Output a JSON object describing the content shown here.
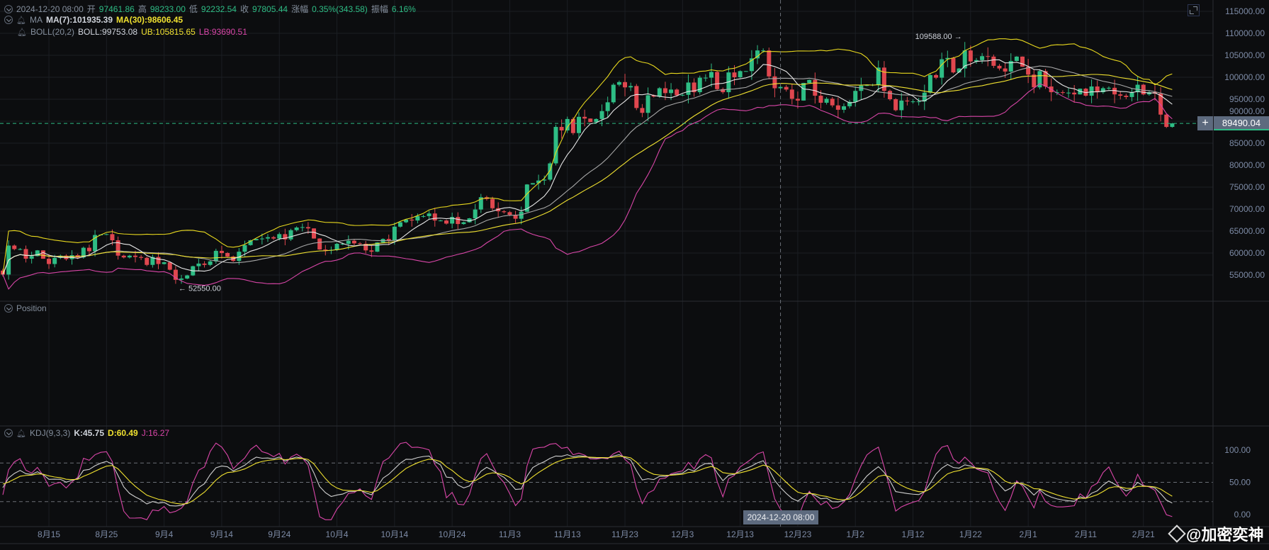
{
  "header": {
    "date": "2024-12-20 08:00",
    "open_label": "开",
    "open": "97461.86",
    "high_label": "高",
    "high": "98233.00",
    "low_label": "低",
    "low": "92232.54",
    "close_label": "收",
    "close": "97805.44",
    "change_label": "涨幅",
    "change": "0.35%(343.58)",
    "amp_label": "振幅",
    "amp": "6.16%"
  },
  "ma": {
    "name": "MA",
    "ma7": "MA(7):101935.39",
    "ma30": "MA(30):98606.45"
  },
  "boll": {
    "name": "BOLL(20,2)",
    "mid": "BOLL:99753.08",
    "ub": "UB:105815.65",
    "lb": "LB:93690.51"
  },
  "position": {
    "name": "Position"
  },
  "kdj": {
    "name": "KDJ(9,3,3)",
    "k": "K:45.75",
    "d": "D:60.49",
    "j": "J:16.27"
  },
  "current_price": "89490.04",
  "crosshair_time": "2024-12-20 08:00",
  "annotations": {
    "max": "109588.00 →",
    "min": "← 52550.00"
  },
  "watermark": "@加密奕神",
  "colors": {
    "up": "#2ebd85",
    "down": "#e0474f",
    "ma7": "#e6e6e6",
    "ma30": "#f0e130",
    "boll_mid": "#a8a8a8",
    "ub": "#e8d81e",
    "lb": "#d946a8",
    "k": "#d0d0d0",
    "d": "#f0e130",
    "j": "#d946a8"
  },
  "chart_data": {
    "type": "candlestick",
    "price_axis": {
      "ticks": [
        "115000.00",
        "110000.00",
        "105000.00",
        "100000.00",
        "95000.00",
        "90000.00",
        "85000.00",
        "80000.00",
        "75000.00",
        "70000.00",
        "65000.00",
        "60000.00",
        "55000.00"
      ],
      "range": [
        55000,
        115000
      ]
    },
    "kdj_axis": {
      "ticks": [
        "100.00",
        "50.00",
        "0.00"
      ],
      "range": [
        0,
        100
      ],
      "dashed_levels": [
        80,
        50,
        20
      ]
    },
    "time_axis": {
      "ticks": [
        "8月15",
        "8月25",
        "9月4",
        "9月14",
        "9月24",
        "10月4",
        "10月14",
        "10月24",
        "11月3",
        "11月13",
        "11月23",
        "12月3",
        "12月13",
        "12月23",
        "1月2",
        "1月12",
        "1月22",
        "2月1",
        "2月11",
        "2月21"
      ]
    },
    "first_open": 56000,
    "closes": [
      55100,
      61700,
      60900,
      60900,
      58700,
      59300,
      60600,
      58700,
      57500,
      58900,
      59400,
      58600,
      59500,
      59000,
      61200,
      60400,
      64100,
      64200,
      64300,
      62900,
      59400,
      59000,
      59400,
      59100,
      58900,
      57300,
      59100,
      57500,
      57900,
      56200,
      53900,
      54200,
      54900,
      57000,
      57600,
      57300,
      58100,
      60500,
      60000,
      59200,
      58200,
      60300,
      61800,
      62900,
      63200,
      63300,
      63600,
      63300,
      64300,
      63100,
      65200,
      65800,
      65900,
      65600,
      63300,
      60800,
      60600,
      60700,
      62100,
      62100,
      62800,
      62200,
      62100,
      60600,
      60300,
      62400,
      63200,
      62900,
      66000,
      67000,
      67600,
      67400,
      68400,
      68400,
      69000,
      67400,
      67400,
      66700,
      68200,
      66600,
      67000,
      67900,
      69900,
      72700,
      72300,
      70200,
      69500,
      69300,
      68700,
      67800,
      69400,
      75600,
      75900,
      76500,
      76700,
      80400,
      88700,
      87900,
      90500,
      87300,
      91000,
      90600,
      89800,
      90500,
      92300,
      94300,
      98300,
      98900,
      97700,
      98000,
      93000,
      91900,
      95900,
      95600,
      97500,
      96400,
      97200,
      95900,
      96000,
      98800,
      96600,
      99900,
      99900,
      101200,
      97300,
      96600,
      101100,
      100000,
      101400,
      101400,
      104300,
      106100,
      106100,
      100200,
      97500,
      97805,
      97200,
      95100,
      94700,
      98700,
      99400,
      95800,
      94200,
      95100,
      93600,
      92600,
      93400,
      94400,
      96900,
      98100,
      98200,
      98300,
      102200,
      96900,
      95000,
      92500,
      94700,
      94500,
      94500,
      94500,
      96500,
      100500,
      99900,
      104100,
      104400,
      101100,
      102000,
      106100,
      103600,
      103900,
      104800,
      104700,
      102600,
      102000,
      101300,
      103700,
      104700,
      102400,
      100600,
      97700,
      101400,
      97900,
      96600,
      96600,
      96500,
      96500,
      96100,
      97400,
      95800,
      97900,
      96600,
      97500,
      97600,
      96100,
      95800,
      95500,
      96600,
      98300,
      96100,
      96600,
      96300,
      91500,
      88700,
      89490
    ]
  }
}
